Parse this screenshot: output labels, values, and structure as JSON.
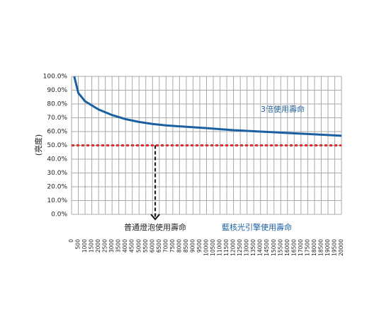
{
  "chart_data": {
    "type": "line",
    "y_label": "(亮度)",
    "annotation_curve": "3倍使用壽命",
    "annotation_bulb": "普通燈泡使用壽命",
    "annotation_engine": "藍核光引擎使用壽命",
    "x": [
      200,
      500,
      1000,
      2000,
      3000,
      4000,
      5000,
      6000,
      7000,
      8000,
      10000,
      12000,
      14000,
      16000,
      18000,
      20000
    ],
    "series": [
      {
        "color": "#1a5fa0",
        "values": [
          100,
          88,
          82,
          76,
          72,
          69,
          67,
          65.5,
          64.5,
          63.8,
          62.5,
          61,
          60,
          59,
          58,
          57
        ]
      }
    ],
    "reference_line": {
      "value": 50,
      "color": "#e03030"
    },
    "arrow_x": 6200,
    "xlim": [
      0,
      20000
    ],
    "xticks": [
      0,
      500,
      1000,
      1500,
      2000,
      2500,
      3000,
      3500,
      4000,
      4500,
      5000,
      5500,
      6000,
      6500,
      7000,
      7500,
      8000,
      8500,
      9000,
      9500,
      10000,
      10500,
      11000,
      11500,
      12000,
      12500,
      13000,
      13500,
      14000,
      14500,
      15000,
      15500,
      16000,
      16500,
      17000,
      17500,
      18000,
      18500,
      19000,
      19500,
      20000
    ],
    "ylim": [
      0,
      100
    ],
    "yticks": [
      {
        "value": 0,
        "label": "0.0%"
      },
      {
        "value": 10,
        "label": "10.0%"
      },
      {
        "value": 20,
        "label": "20.0%"
      },
      {
        "value": 30,
        "label": "30.0%"
      },
      {
        "value": 40,
        "label": "40.0%"
      },
      {
        "value": 50,
        "label": "50.0%"
      },
      {
        "value": 60,
        "label": "60.0%"
      },
      {
        "value": 70,
        "label": "70.0%"
      },
      {
        "value": 80,
        "label": "80.0%"
      },
      {
        "value": 90,
        "label": "90.0%"
      },
      {
        "value": 100,
        "label": "100.0%"
      }
    ],
    "grid": true
  }
}
